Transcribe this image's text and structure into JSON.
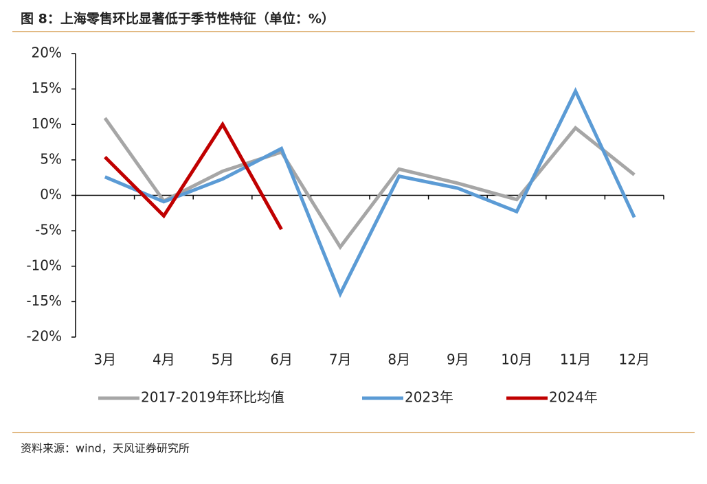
{
  "chart_data": {
    "type": "line",
    "title": "图 8：上海零售环比显著低于季节性特征（单位：%）",
    "source": "资料来源：wind，天风证券研究所",
    "categories": [
      "3月",
      "4月",
      "5月",
      "6月",
      "7月",
      "8月",
      "9月",
      "10月",
      "11月",
      "12月"
    ],
    "series": [
      {
        "name": "2017-2019年环比均值",
        "color": "#a6a6a6",
        "values": [
          10.9,
          -0.8,
          3.4,
          6.1,
          -7.3,
          3.7,
          1.7,
          -0.6,
          9.5,
          2.9
        ]
      },
      {
        "name": "2023年",
        "color": "#5b9bd5",
        "values": [
          2.6,
          -0.9,
          2.3,
          6.6,
          -13.9,
          2.7,
          1.0,
          -2.3,
          14.7,
          -3.1
        ]
      },
      {
        "name": "2024年",
        "color": "#c00000",
        "values": [
          5.4,
          -2.9,
          10.0,
          -4.8,
          null,
          null,
          null,
          null,
          null,
          null
        ]
      }
    ],
    "ylim": [
      -20,
      20
    ],
    "yticks": [
      {
        "value": 20,
        "label": "20%"
      },
      {
        "value": 15,
        "label": "15%"
      },
      {
        "value": 10,
        "label": "10%"
      },
      {
        "value": 5,
        "label": "5%"
      },
      {
        "value": 0,
        "label": "0%"
      },
      {
        "value": -5,
        "label": "-5%"
      },
      {
        "value": -10,
        "label": "-10%"
      },
      {
        "value": -15,
        "label": "-15%"
      },
      {
        "value": -20,
        "label": "-20%"
      }
    ],
    "grid": false,
    "legend": "bottom"
  }
}
